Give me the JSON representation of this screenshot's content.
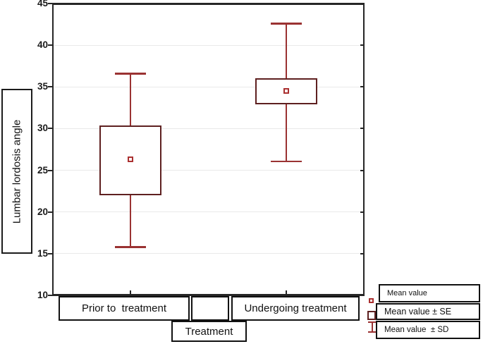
{
  "chart_data": {
    "type": "box",
    "title": "",
    "ylabel": "Lumbar lordosis angle",
    "xlabel": "Treatment",
    "ylim": [
      10,
      45
    ],
    "yticks": [
      10,
      15,
      20,
      25,
      30,
      35,
      40,
      45
    ],
    "grid": "horizontal-only",
    "legend_position": "bottom-right",
    "categories": [
      "Prior to  treatment",
      "Undergoing treatment"
    ],
    "series": [
      {
        "category": "Prior to  treatment",
        "mean": 26.3,
        "se_low": 22.0,
        "se_high": 30.4,
        "sd_low": 15.8,
        "sd_high": 36.6
      },
      {
        "category": "Undergoing treatment",
        "mean": 34.5,
        "se_low": 32.9,
        "se_high": 36.0,
        "sd_low": 26.1,
        "sd_high": 42.6
      }
    ],
    "legend": [
      {
        "label": "Mean value",
        "marker": "mean-square"
      },
      {
        "label": "Mean value ± SE",
        "marker": "se-box"
      },
      {
        "label": "Mean value  ± SD",
        "marker": "sd-whisker"
      }
    ],
    "colors": {
      "mean_marker": "#aa3030",
      "se_box": "#5e2020",
      "sd_whisker": "#9a3232",
      "gridline": "#e9e9e9",
      "frame": "#262626",
      "label_box_border": "#111111"
    }
  }
}
